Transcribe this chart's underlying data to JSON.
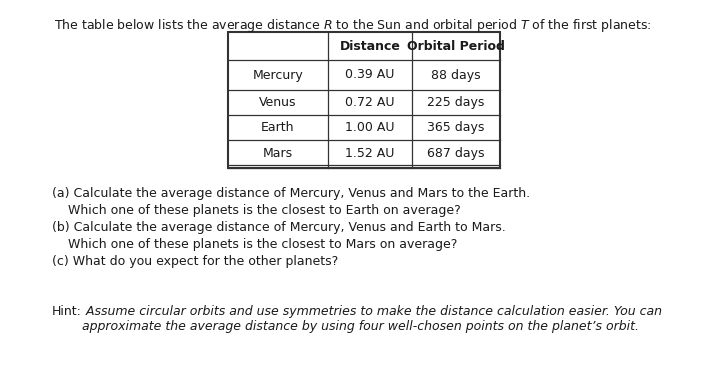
{
  "title": "The table below lists the average distance $R$ to the Sun and orbital period $T$ of the first planets:",
  "table_headers": [
    "Distance",
    "Orbital Period"
  ],
  "table_rows": [
    [
      "Mercury",
      "0.39 AU",
      "88 days"
    ],
    [
      "Venus",
      "0.72 AU",
      "225 days"
    ],
    [
      "Earth",
      "1.00 AU",
      "365 days"
    ],
    [
      "Mars",
      "1.52 AU",
      "687 days"
    ]
  ],
  "questions": [
    [
      "(a)",
      " Calculate the average distance of Mercury, Venus and Mars to the Earth."
    ],
    [
      "    ",
      "Which one of these planets is the closest to Earth on average?"
    ],
    [
      "(b)",
      " Calculate the average distance of Mercury, Venus and Earth to Mars."
    ],
    [
      "    ",
      "Which one of these planets is the closest to Mars on average?"
    ],
    [
      "(c)",
      " What do you expect for the other planets?"
    ]
  ],
  "hint_label": "Hint:",
  "hint_body": " Assume circular orbits and use symmetries to make the distance calculation easier. You can\napproximate the average distance by using four well-chosen points on the planet’s orbit.",
  "bg_color": "#ffffff",
  "text_color": "#1a1a1a",
  "fontsize": 9.0
}
